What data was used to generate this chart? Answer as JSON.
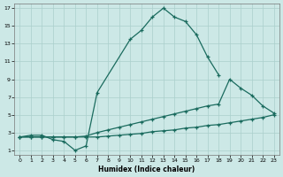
{
  "xlabel": "Humidex (Indice chaleur)",
  "background_color": "#cce8e6",
  "grid_color": "#aacfcc",
  "line_color": "#1a6b5e",
  "xlim": [
    -0.5,
    23.5
  ],
  "ylim": [
    0.5,
    17.5
  ],
  "xticks": [
    0,
    1,
    2,
    3,
    4,
    5,
    6,
    7,
    8,
    9,
    10,
    11,
    12,
    13,
    14,
    15,
    16,
    17,
    18,
    19,
    20,
    21,
    22,
    23
  ],
  "yticks": [
    1,
    3,
    5,
    7,
    9,
    11,
    13,
    15,
    17
  ],
  "line1_x": [
    0,
    1,
    2,
    3,
    4,
    5,
    6,
    7,
    10,
    11,
    12,
    13,
    14,
    15,
    16,
    17,
    18
  ],
  "line1_y": [
    2.5,
    2.7,
    2.7,
    2.2,
    2.0,
    1.0,
    1.5,
    7.5,
    13.5,
    14.5,
    16.0,
    17.0,
    16.0,
    15.5,
    14.0,
    11.5,
    9.5
  ],
  "line2_x": [
    0,
    1,
    2,
    3,
    4,
    5,
    6,
    7,
    8,
    9,
    10,
    11,
    12,
    13,
    14,
    15,
    16,
    17,
    18,
    19,
    20,
    21,
    22,
    23
  ],
  "line2_y": [
    2.5,
    2.5,
    2.5,
    2.5,
    2.5,
    2.5,
    2.6,
    3.0,
    3.3,
    3.6,
    3.9,
    4.2,
    4.5,
    4.8,
    5.1,
    5.4,
    5.7,
    6.0,
    6.2,
    9.0,
    8.0,
    7.2,
    6.0,
    5.2
  ],
  "line3_x": [
    0,
    1,
    2,
    3,
    4,
    5,
    6,
    7,
    8,
    9,
    10,
    11,
    12,
    13,
    14,
    15,
    16,
    17,
    18,
    19,
    20,
    21,
    22,
    23
  ],
  "line3_y": [
    2.5,
    2.5,
    2.5,
    2.5,
    2.5,
    2.5,
    2.5,
    2.5,
    2.6,
    2.7,
    2.8,
    2.9,
    3.1,
    3.2,
    3.3,
    3.5,
    3.6,
    3.8,
    3.9,
    4.1,
    4.3,
    4.5,
    4.7,
    5.0
  ]
}
